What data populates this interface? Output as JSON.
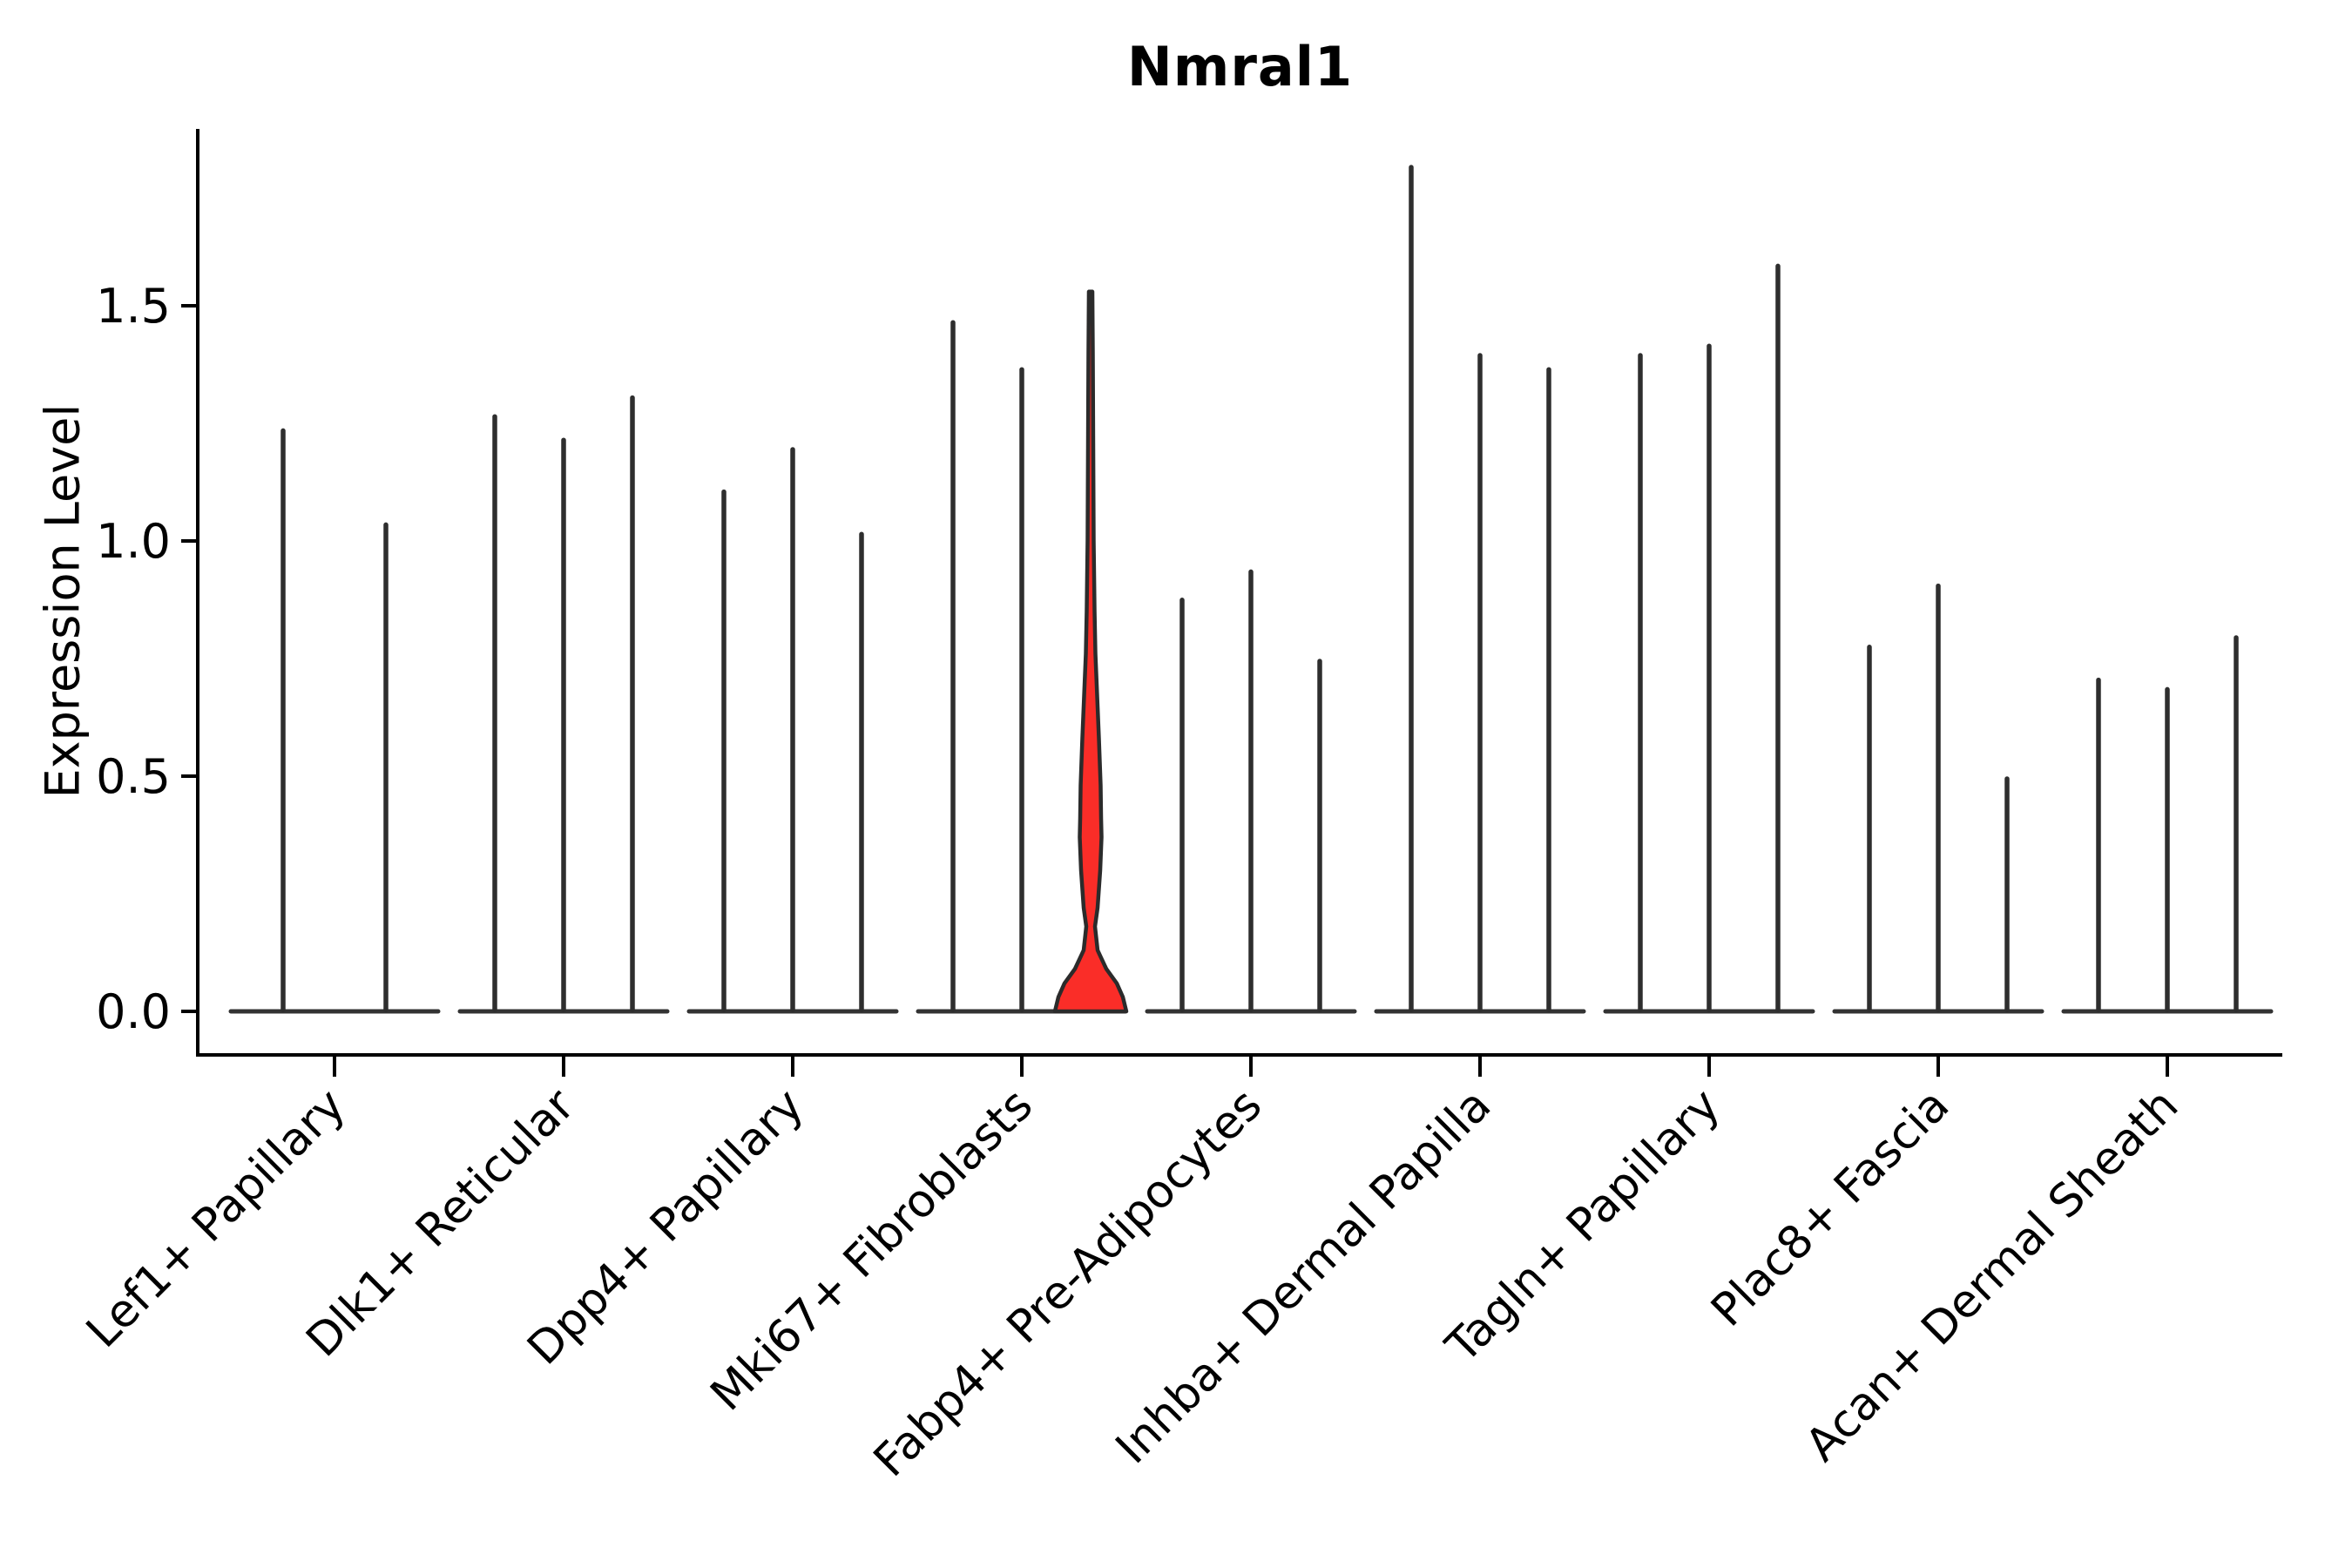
{
  "chart_data": {
    "type": "violin",
    "title": "Nmral1",
    "ylabel": "Expression Level",
    "xlabel": "",
    "grid": false,
    "legend": false,
    "yticks": [
      {
        "value": 0.0,
        "label": "0.0"
      },
      {
        "value": 0.5,
        "label": "0.5"
      },
      {
        "value": 1.0,
        "label": "1.0"
      },
      {
        "value": 1.5,
        "label": "1.5"
      }
    ],
    "ylim": [
      -0.09,
      1.88
    ],
    "colors": {
      "axis": "#000000",
      "spike": "#2e2e2e",
      "baseline": "#333333",
      "highlight_fill": "#fa2d28",
      "highlight_outline": "#2b2b2b"
    },
    "groups": [
      {
        "label": "Lef1+ Papillary",
        "violins": [
          {
            "max": 1.24,
            "offset": -59
          },
          {
            "max": 1.04,
            "offset": 59
          }
        ]
      },
      {
        "label": "Dlk1+ Reticular",
        "violins": [
          {
            "max": 1.27,
            "offset": -79
          },
          {
            "max": 1.22,
            "offset": 0
          },
          {
            "max": 1.31,
            "offset": 79
          }
        ]
      },
      {
        "label": "Dpp4+ Papillary",
        "violins": [
          {
            "max": 1.11,
            "offset": -79
          },
          {
            "max": 1.2,
            "offset": 0
          },
          {
            "max": 1.02,
            "offset": 79
          }
        ]
      },
      {
        "label": "Mki67+ Fibroblasts",
        "violins": [
          {
            "max": 1.47,
            "offset": -79
          },
          {
            "max": 1.37,
            "offset": 0
          },
          {
            "max": 1.53,
            "offset": 79,
            "highlighted": true
          }
        ]
      },
      {
        "label": "Fabp4+ Pre-Adipocytes",
        "violins": [
          {
            "max": 0.88,
            "offset": -79
          },
          {
            "max": 0.94,
            "offset": 0
          },
          {
            "max": 0.75,
            "offset": 79
          }
        ]
      },
      {
        "label": "Inhba+ Dermal Papilla",
        "violins": [
          {
            "max": 1.8,
            "offset": -79
          },
          {
            "max": 1.4,
            "offset": 0
          },
          {
            "max": 1.37,
            "offset": 79
          }
        ]
      },
      {
        "label": "Tagln+ Papillary",
        "violins": [
          {
            "max": 1.4,
            "offset": -79
          },
          {
            "max": 1.42,
            "offset": 0
          },
          {
            "max": 1.59,
            "offset": 79
          }
        ]
      },
      {
        "label": "Plac8+ Fascia",
        "violins": [
          {
            "max": 0.78,
            "offset": -79
          },
          {
            "max": 0.91,
            "offset": 0
          },
          {
            "max": 0.5,
            "offset": 79
          }
        ]
      },
      {
        "label": "Acan+ Dermal Sheath",
        "violins": [
          {
            "max": 0.71,
            "offset": -79
          },
          {
            "max": 0.69,
            "offset": 0
          },
          {
            "max": 0.8,
            "offset": 79
          }
        ]
      }
    ],
    "highlight_profile": [
      [
        1.0,
        0.049
      ],
      [
        0.915,
        0.061
      ],
      [
        0.784,
        0.073
      ],
      [
        0.654,
        0.085
      ],
      [
        0.556,
        0.11
      ],
      [
        0.497,
        0.134
      ],
      [
        0.438,
        0.183
      ],
      [
        0.379,
        0.232
      ],
      [
        0.314,
        0.28
      ],
      [
        0.268,
        0.293
      ],
      [
        0.242,
        0.305
      ],
      [
        0.196,
        0.268
      ],
      [
        0.144,
        0.195
      ],
      [
        0.118,
        0.122
      ],
      [
        0.085,
        0.195
      ],
      [
        0.059,
        0.439
      ],
      [
        0.039,
        0.732
      ],
      [
        0.02,
        0.902
      ],
      [
        0.0,
        1.0
      ]
    ]
  }
}
